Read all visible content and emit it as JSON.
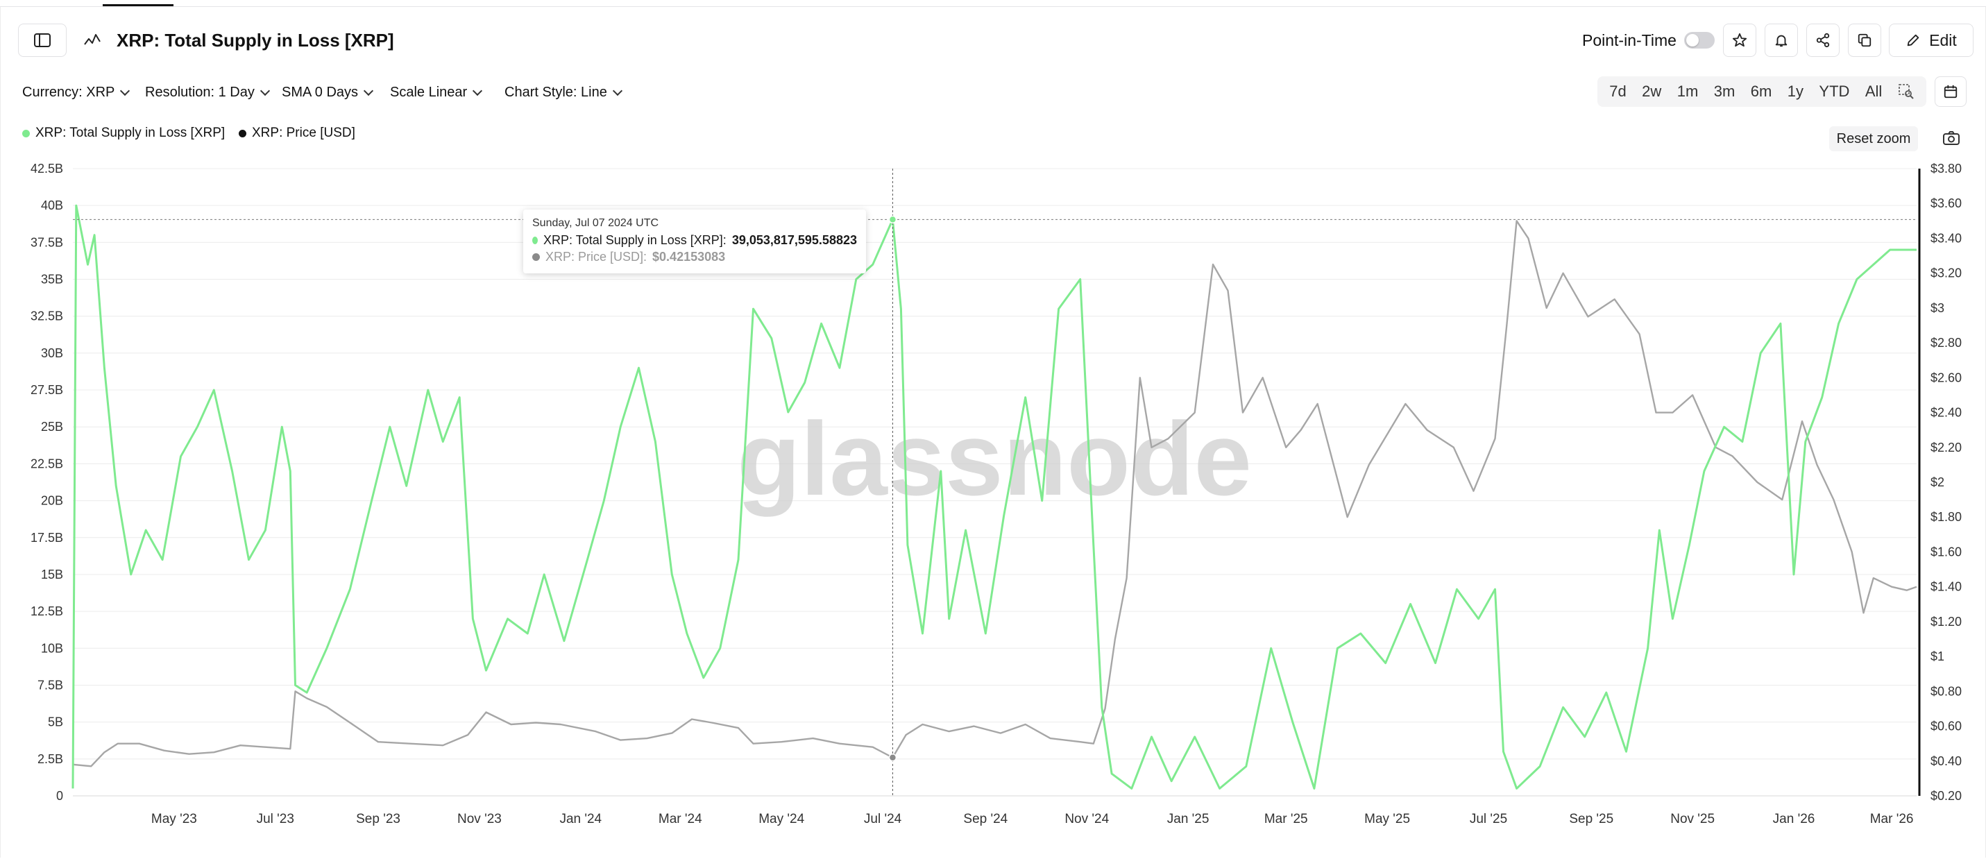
{
  "header": {
    "title": "XRP: Total Supply in Loss [XRP]",
    "point_in_time_label": "Point-in-Time",
    "edit_label": "Edit"
  },
  "filters": [
    {
      "label": "Currency: XRP"
    },
    {
      "label": "Resolution: 1 Day"
    },
    {
      "label": "SMA 0 Days"
    },
    {
      "label": "Scale Linear"
    },
    {
      "label": "Chart Style: Line"
    }
  ],
  "ranges": [
    "7d",
    "2w",
    "1m",
    "3m",
    "6m",
    "1y",
    "YTD",
    "All"
  ],
  "reset_zoom_label": "Reset zoom",
  "watermark": "glassnode",
  "colors": {
    "supply_series": "#7fea8f",
    "price_series": "#a6a6a6",
    "price_legend_dot": "#111111"
  },
  "tooltip": {
    "date": "Sunday, Jul 07 2024 UTC",
    "supply_label": "XRP: Total Supply in Loss [XRP]:",
    "supply_value": "39,053,817,595.58823",
    "price_label": "XRP: Price [USD]:",
    "price_value": "$0.42153083"
  },
  "chart_data": {
    "type": "line",
    "title": "XRP: Total Supply in Loss [XRP]",
    "x_range": [
      "2023-03-01",
      "2026-03-16"
    ],
    "x_tick_labels": [
      "May '23",
      "Jul '23",
      "Sep '23",
      "Nov '23",
      "Jan '24",
      "Mar '24",
      "May '24",
      "Jul '24",
      "Sep '24",
      "Nov '24",
      "Jan '25",
      "Mar '25",
      "May '25",
      "Jul '25",
      "Sep '25",
      "Nov '25",
      "Jan '26",
      "Mar '26"
    ],
    "y_left": {
      "min": 0,
      "max": 42.5,
      "unit": "B",
      "tick_labels": [
        "0",
        "2.5B",
        "5B",
        "7.5B",
        "10B",
        "12.5B",
        "15B",
        "17.5B",
        "20B",
        "22.5B",
        "25B",
        "27.5B",
        "30B",
        "32.5B",
        "35B",
        "37.5B",
        "40B",
        "42.5B"
      ]
    },
    "y_right": {
      "min": 0.2,
      "max": 3.8,
      "tick_labels": [
        "$0.20",
        "$0.40",
        "$0.60",
        "$0.80",
        "$1",
        "$1.20",
        "$1.40",
        "$1.60",
        "$1.80",
        "$2",
        "$2.20",
        "$2.40",
        "$2.60",
        "$2.80",
        "$3",
        "$3.20",
        "$3.40",
        "$3.60",
        "$3.80"
      ]
    },
    "grid": true,
    "legend_position": "top-left",
    "series": [
      {
        "name": "XRP: Total Supply in Loss [XRP]",
        "axis": "left",
        "points": [
          [
            "2023-03-01",
            0.5
          ],
          [
            "2023-03-03",
            40.0
          ],
          [
            "2023-03-10",
            36.0
          ],
          [
            "2023-03-14",
            38.0
          ],
          [
            "2023-03-20",
            29.0
          ],
          [
            "2023-03-27",
            21.0
          ],
          [
            "2023-04-05",
            15.0
          ],
          [
            "2023-04-14",
            18.0
          ],
          [
            "2023-04-24",
            16.0
          ],
          [
            "2023-05-05",
            23.0
          ],
          [
            "2023-05-15",
            25.0
          ],
          [
            "2023-05-25",
            27.5
          ],
          [
            "2023-06-05",
            22.0
          ],
          [
            "2023-06-15",
            16.0
          ],
          [
            "2023-06-25",
            18.0
          ],
          [
            "2023-07-05",
            25.0
          ],
          [
            "2023-07-10",
            22.0
          ],
          [
            "2023-07-13",
            7.5
          ],
          [
            "2023-07-20",
            7.0
          ],
          [
            "2023-08-01",
            10.0
          ],
          [
            "2023-08-15",
            14.0
          ],
          [
            "2023-08-28",
            20.0
          ],
          [
            "2023-09-08",
            25.0
          ],
          [
            "2023-09-18",
            21.0
          ],
          [
            "2023-10-01",
            27.5
          ],
          [
            "2023-10-10",
            24.0
          ],
          [
            "2023-10-20",
            27.0
          ],
          [
            "2023-10-28",
            12.0
          ],
          [
            "2023-11-05",
            8.5
          ],
          [
            "2023-11-18",
            12.0
          ],
          [
            "2023-11-30",
            11.0
          ],
          [
            "2023-12-10",
            15.0
          ],
          [
            "2023-12-22",
            10.5
          ],
          [
            "2024-01-05",
            16.0
          ],
          [
            "2024-01-15",
            20.0
          ],
          [
            "2024-01-25",
            25.0
          ],
          [
            "2024-02-05",
            29.0
          ],
          [
            "2024-02-15",
            24.0
          ],
          [
            "2024-02-25",
            15.0
          ],
          [
            "2024-03-05",
            11.0
          ],
          [
            "2024-03-15",
            8.0
          ],
          [
            "2024-03-25",
            10.0
          ],
          [
            "2024-04-05",
            16.0
          ],
          [
            "2024-04-14",
            33.0
          ],
          [
            "2024-04-25",
            31.0
          ],
          [
            "2024-05-05",
            26.0
          ],
          [
            "2024-05-15",
            28.0
          ],
          [
            "2024-05-25",
            32.0
          ],
          [
            "2024-06-05",
            29.0
          ],
          [
            "2024-06-15",
            35.0
          ],
          [
            "2024-06-25",
            36.0
          ],
          [
            "2024-07-07",
            39.05
          ],
          [
            "2024-07-12",
            33.0
          ],
          [
            "2024-07-16",
            17.0
          ],
          [
            "2024-07-25",
            11.0
          ],
          [
            "2024-08-05",
            22.0
          ],
          [
            "2024-08-10",
            12.0
          ],
          [
            "2024-08-20",
            18.0
          ],
          [
            "2024-09-01",
            11.0
          ],
          [
            "2024-09-12",
            19.0
          ],
          [
            "2024-09-25",
            27.0
          ],
          [
            "2024-10-05",
            20.0
          ],
          [
            "2024-10-15",
            33.0
          ],
          [
            "2024-10-28",
            35.0
          ],
          [
            "2024-11-05",
            17.0
          ],
          [
            "2024-11-10",
            6.0
          ],
          [
            "2024-11-16",
            1.5
          ],
          [
            "2024-11-28",
            0.5
          ],
          [
            "2024-12-10",
            4.0
          ],
          [
            "2024-12-22",
            1.0
          ],
          [
            "2025-01-05",
            4.0
          ],
          [
            "2025-01-20",
            0.5
          ],
          [
            "2025-02-05",
            2.0
          ],
          [
            "2025-02-20",
            10.0
          ],
          [
            "2025-03-05",
            5.0
          ],
          [
            "2025-03-18",
            0.5
          ],
          [
            "2025-04-01",
            10.0
          ],
          [
            "2025-04-15",
            11.0
          ],
          [
            "2025-04-30",
            9.0
          ],
          [
            "2025-05-15",
            13.0
          ],
          [
            "2025-05-30",
            9.0
          ],
          [
            "2025-06-12",
            14.0
          ],
          [
            "2025-06-25",
            12.0
          ],
          [
            "2025-07-05",
            14.0
          ],
          [
            "2025-07-10",
            3.0
          ],
          [
            "2025-07-18",
            0.5
          ],
          [
            "2025-08-01",
            2.0
          ],
          [
            "2025-08-15",
            6.0
          ],
          [
            "2025-08-28",
            4.0
          ],
          [
            "2025-09-10",
            7.0
          ],
          [
            "2025-09-22",
            3.0
          ],
          [
            "2025-10-05",
            10.0
          ],
          [
            "2025-10-12",
            18.0
          ],
          [
            "2025-10-20",
            12.0
          ],
          [
            "2025-10-30",
            17.0
          ],
          [
            "2025-11-08",
            22.0
          ],
          [
            "2025-11-20",
            25.0
          ],
          [
            "2025-12-01",
            24.0
          ],
          [
            "2025-12-12",
            30.0
          ],
          [
            "2025-12-24",
            32.0
          ],
          [
            "2026-01-01",
            15.0
          ],
          [
            "2026-01-08",
            24.0
          ],
          [
            "2026-01-18",
            27.0
          ],
          [
            "2026-01-28",
            32.0
          ],
          [
            "2026-02-08",
            35.0
          ],
          [
            "2026-02-18",
            36.0
          ],
          [
            "2026-02-28",
            37.0
          ],
          [
            "2026-03-10",
            37.0
          ],
          [
            "2026-03-16",
            37.0
          ]
        ]
      },
      {
        "name": "XRP: Price [USD]",
        "axis": "right",
        "points": [
          [
            "2023-03-01",
            0.38
          ],
          [
            "2023-03-12",
            0.37
          ],
          [
            "2023-03-20",
            0.45
          ],
          [
            "2023-03-28",
            0.5
          ],
          [
            "2023-04-10",
            0.5
          ],
          [
            "2023-04-25",
            0.46
          ],
          [
            "2023-05-10",
            0.44
          ],
          [
            "2023-05-25",
            0.45
          ],
          [
            "2023-06-10",
            0.49
          ],
          [
            "2023-06-25",
            0.48
          ],
          [
            "2023-07-10",
            0.47
          ],
          [
            "2023-07-13",
            0.8
          ],
          [
            "2023-07-20",
            0.76
          ],
          [
            "2023-08-01",
            0.71
          ],
          [
            "2023-08-15",
            0.62
          ],
          [
            "2023-09-01",
            0.51
          ],
          [
            "2023-09-20",
            0.5
          ],
          [
            "2023-10-10",
            0.49
          ],
          [
            "2023-10-25",
            0.55
          ],
          [
            "2023-11-05",
            0.68
          ],
          [
            "2023-11-20",
            0.61
          ],
          [
            "2023-12-05",
            0.62
          ],
          [
            "2023-12-20",
            0.61
          ],
          [
            "2024-01-10",
            0.57
          ],
          [
            "2024-01-25",
            0.52
          ],
          [
            "2024-02-10",
            0.53
          ],
          [
            "2024-02-25",
            0.56
          ],
          [
            "2024-03-08",
            0.64
          ],
          [
            "2024-03-20",
            0.62
          ],
          [
            "2024-04-05",
            0.59
          ],
          [
            "2024-04-14",
            0.5
          ],
          [
            "2024-05-01",
            0.51
          ],
          [
            "2024-05-20",
            0.53
          ],
          [
            "2024-06-05",
            0.5
          ],
          [
            "2024-06-25",
            0.48
          ],
          [
            "2024-07-07",
            0.42
          ],
          [
            "2024-07-15",
            0.55
          ],
          [
            "2024-07-25",
            0.61
          ],
          [
            "2024-08-10",
            0.57
          ],
          [
            "2024-08-25",
            0.6
          ],
          [
            "2024-09-10",
            0.56
          ],
          [
            "2024-09-25",
            0.61
          ],
          [
            "2024-10-10",
            0.53
          ],
          [
            "2024-10-28",
            0.51
          ],
          [
            "2024-11-05",
            0.5
          ],
          [
            "2024-11-12",
            0.7
          ],
          [
            "2024-11-18",
            1.1
          ],
          [
            "2024-11-25",
            1.45
          ],
          [
            "2024-12-03",
            2.6
          ],
          [
            "2024-12-10",
            2.2
          ],
          [
            "2024-12-20",
            2.25
          ],
          [
            "2025-01-05",
            2.4
          ],
          [
            "2025-01-16",
            3.25
          ],
          [
            "2025-01-25",
            3.1
          ],
          [
            "2025-02-03",
            2.4
          ],
          [
            "2025-02-15",
            2.6
          ],
          [
            "2025-03-01",
            2.2
          ],
          [
            "2025-03-10",
            2.3
          ],
          [
            "2025-03-20",
            2.45
          ],
          [
            "2025-04-07",
            1.8
          ],
          [
            "2025-04-20",
            2.1
          ],
          [
            "2025-05-12",
            2.45
          ],
          [
            "2025-05-25",
            2.3
          ],
          [
            "2025-06-10",
            2.2
          ],
          [
            "2025-06-22",
            1.95
          ],
          [
            "2025-07-05",
            2.25
          ],
          [
            "2025-07-12",
            2.9
          ],
          [
            "2025-07-18",
            3.5
          ],
          [
            "2025-07-25",
            3.4
          ],
          [
            "2025-08-05",
            3.0
          ],
          [
            "2025-08-15",
            3.2
          ],
          [
            "2025-08-30",
            2.95
          ],
          [
            "2025-09-15",
            3.05
          ],
          [
            "2025-09-30",
            2.85
          ],
          [
            "2025-10-10",
            2.4
          ],
          [
            "2025-10-20",
            2.4
          ],
          [
            "2025-11-01",
            2.5
          ],
          [
            "2025-11-15",
            2.2
          ],
          [
            "2025-11-25",
            2.15
          ],
          [
            "2025-12-10",
            2.0
          ],
          [
            "2025-12-25",
            1.9
          ],
          [
            "2026-01-06",
            2.35
          ],
          [
            "2026-01-15",
            2.1
          ],
          [
            "2026-01-25",
            1.9
          ],
          [
            "2026-02-05",
            1.6
          ],
          [
            "2026-02-12",
            1.25
          ],
          [
            "2026-02-18",
            1.45
          ],
          [
            "2026-03-01",
            1.4
          ],
          [
            "2026-03-10",
            1.38
          ],
          [
            "2026-03-16",
            1.4
          ]
        ]
      }
    ]
  }
}
